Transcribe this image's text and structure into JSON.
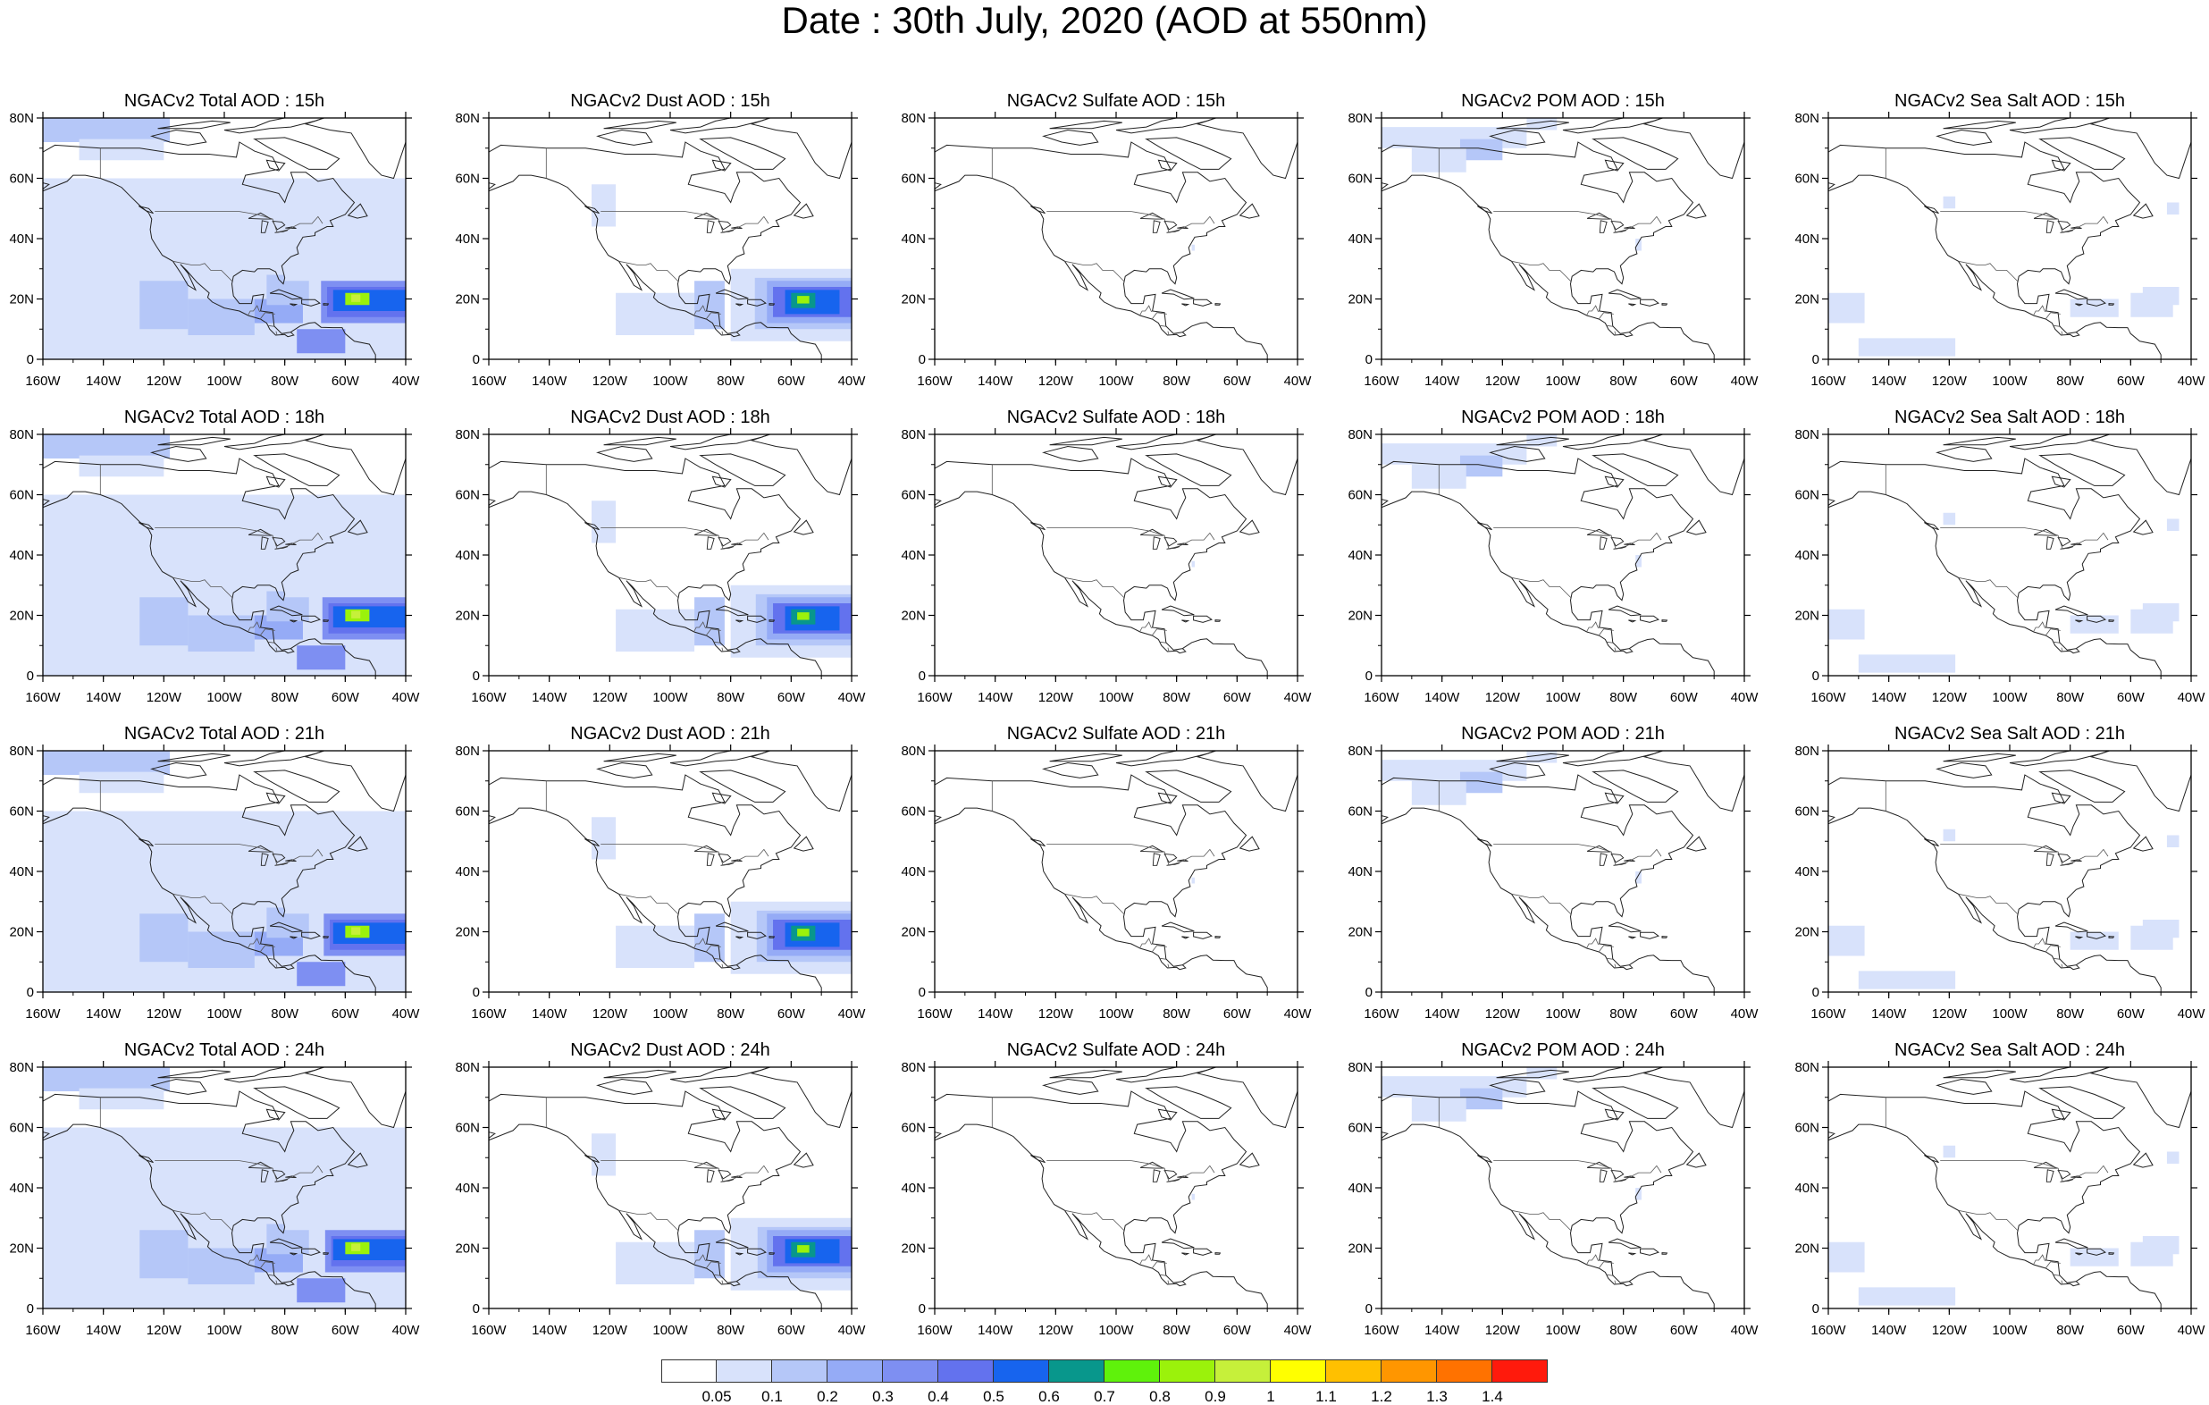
{
  "title": "Date : 30th July, 2020 (AOD at 550nm)",
  "lat_labels": [
    "80N",
    "60N",
    "40N",
    "20N",
    "0"
  ],
  "lon_labels": [
    "160W",
    "140W",
    "120W",
    "100W",
    "80W",
    "60W",
    "40W"
  ],
  "species": [
    {
      "key": "total",
      "label": "Total AOD"
    },
    {
      "key": "dust",
      "label": "Dust AOD"
    },
    {
      "key": "sulfate",
      "label": "Sulfate AOD"
    },
    {
      "key": "pom",
      "label": "POM AOD"
    },
    {
      "key": "seasalt",
      "label": "Sea Salt AOD"
    }
  ],
  "panels": [
    [
      "NGACv2 Total AOD : 15h",
      "NGACv2 Dust AOD : 15h",
      "NGACv2 Sulfate AOD : 15h",
      "NGACv2 POM AOD : 15h",
      "NGACv2 Sea Salt AOD : 15h"
    ],
    [
      "NGACv2 Total AOD : 18h",
      "NGACv2 Dust AOD : 18h",
      "NGACv2 Sulfate AOD : 18h",
      "NGACv2 POM AOD : 18h",
      "NGACv2 Sea Salt AOD : 18h"
    ],
    [
      "NGACv2 Total AOD : 21h",
      "NGACv2 Dust AOD : 21h",
      "NGACv2 Sulfate AOD : 21h",
      "NGACv2 POM AOD : 21h",
      "NGACv2 Sea Salt AOD : 21h"
    ],
    [
      "NGACv2 Total AOD : 24h",
      "NGACv2 Dust AOD : 24h",
      "NGACv2 Sulfate AOD : 24h",
      "NGACv2 POM AOD : 24h",
      "NGACv2 Sea Salt  AOD : 24h"
    ]
  ],
  "colorbar": {
    "colors": [
      "#ffffff",
      "#d8e2fb",
      "#b5c7f8",
      "#95abf6",
      "#7e8ff2",
      "#6372ee",
      "#1764ee",
      "#08978c",
      "#5ff20b",
      "#9bf20b",
      "#c6f03a",
      "#ffff00",
      "#ffc000",
      "#ff9600",
      "#ff7200",
      "#ff1a0c"
    ],
    "labels": [
      "0.05",
      "0.1",
      "0.2",
      "0.3",
      "0.4",
      "0.5",
      "0.6",
      "0.7",
      "0.8",
      "0.9",
      "1",
      "1.1",
      "1.2",
      "1.3",
      "1.4"
    ]
  }
}
